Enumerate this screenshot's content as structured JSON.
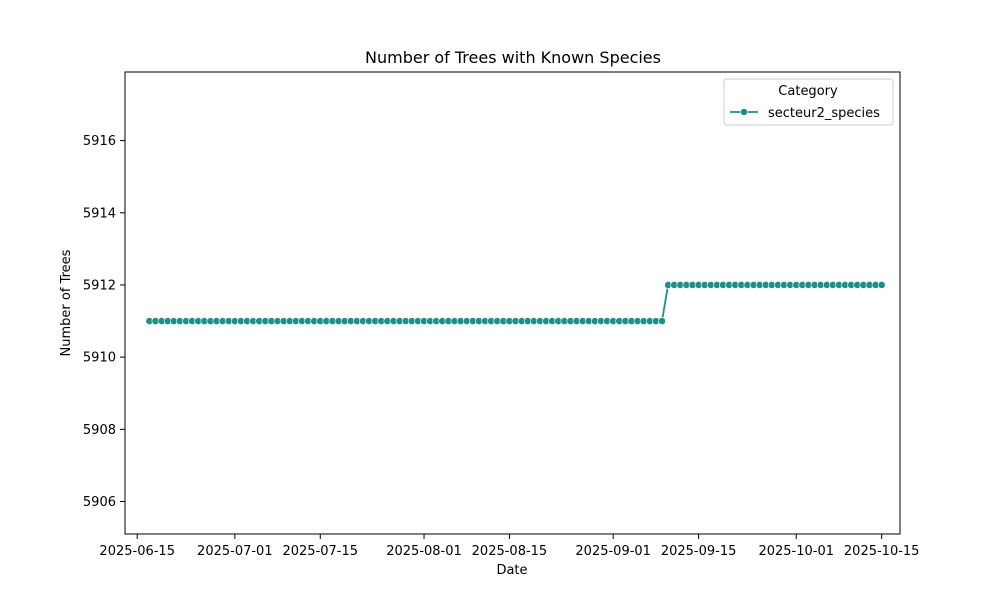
{
  "chart_data": {
    "type": "line",
    "title": "Number of Trees with Known Species",
    "xlabel": "Date",
    "ylabel": "Number of Trees",
    "xlim": [
      "2025-06-13",
      "2025-10-18"
    ],
    "ylim": [
      5905.1,
      5917.9
    ],
    "x_ticks": [
      "2025-06-15",
      "2025-07-01",
      "2025-07-15",
      "2025-08-01",
      "2025-08-15",
      "2025-09-01",
      "2025-09-15",
      "2025-10-01",
      "2025-10-15"
    ],
    "y_ticks": [
      5906,
      5908,
      5910,
      5912,
      5914,
      5916
    ],
    "grid": false,
    "legend": {
      "title": "Category",
      "placement": "top-right"
    },
    "series": [
      {
        "name": "secteur2_species",
        "color": "#1f9088",
        "marker": "circle",
        "segments": [
          {
            "start": "2025-06-17",
            "end": "2025-09-09",
            "value": 5911
          },
          {
            "start": "2025-09-10",
            "end": "2025-10-15",
            "value": 5912
          }
        ]
      }
    ]
  }
}
